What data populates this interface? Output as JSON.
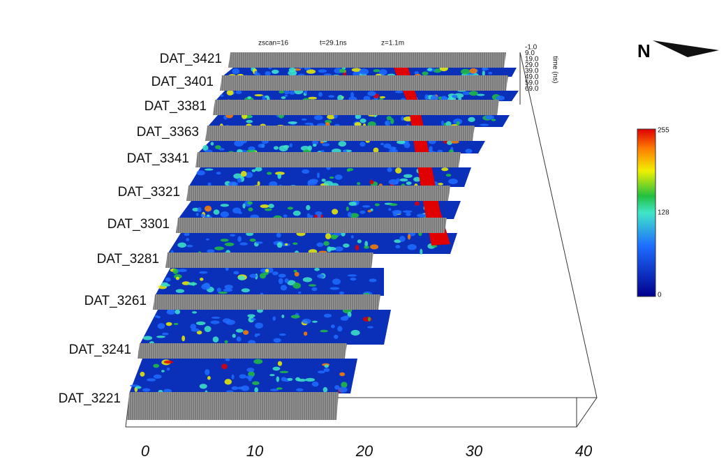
{
  "header": {
    "zscan": "zscan=16",
    "time": "t=29.1ns",
    "depth": "z=1.1m"
  },
  "profiles": [
    "DAT_3421",
    "DAT_3401",
    "DAT_3381",
    "DAT_3363",
    "DAT_3341",
    "DAT_3321",
    "DAT_3301",
    "DAT_3281",
    "DAT_3261",
    "DAT_3241",
    "DAT_3221"
  ],
  "x_axis": {
    "ticks": [
      "0",
      "10",
      "20",
      "30",
      "40"
    ]
  },
  "time_axis": {
    "title": "time (ns)",
    "ticks": [
      "-1.0",
      "9.0",
      "19.0",
      "29.0",
      "39.0",
      "49.0",
      "59.0",
      "69.0"
    ]
  },
  "colorbar": {
    "ticks": [
      "255",
      "128",
      "0"
    ]
  },
  "north": "N"
}
